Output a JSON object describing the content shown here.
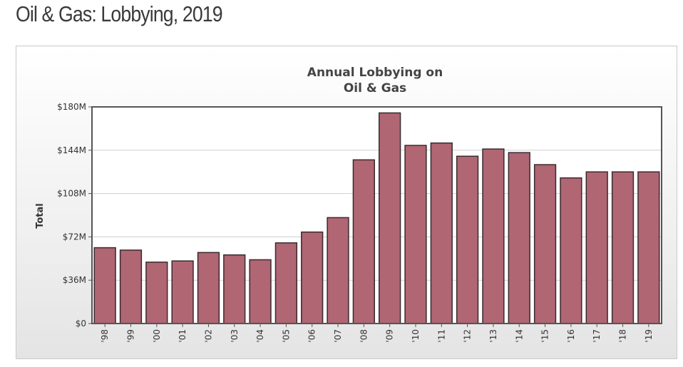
{
  "page": {
    "title": "Oil & Gas: Lobbying, 2019"
  },
  "chart_data": {
    "type": "bar",
    "title_lines": [
      "Annual Lobbying on",
      "Oil & Gas"
    ],
    "xlabel": "",
    "ylabel": "Total",
    "categories": [
      "'98",
      "'99",
      "'00",
      "'01",
      "'02",
      "'03",
      "'04",
      "'05",
      "'06",
      "'07",
      "'08",
      "'09",
      "'10",
      "'11",
      "'12",
      "'13",
      "'14",
      "'15",
      "'16",
      "'17",
      "'18",
      "'19"
    ],
    "values": [
      63,
      61,
      51,
      52,
      59,
      57,
      53,
      67,
      76,
      88,
      136,
      175,
      148,
      150,
      139,
      145,
      142,
      132,
      121,
      126,
      126,
      126
    ],
    "value_unit": "millions USD",
    "ylim": [
      0,
      180
    ],
    "yticks": [
      0,
      36,
      72,
      108,
      144,
      180
    ],
    "ytick_labels": [
      "$0",
      "$36M",
      "$72M",
      "$108M",
      "$144M",
      "$180M"
    ],
    "grid": true,
    "legend": "none",
    "colors": {
      "bar_fill": "#b06673",
      "bar_stroke": "#3a2a2e",
      "plot_border": "#555555",
      "gridline": "#cfcfcf",
      "plot_background": "#ffffff"
    }
  }
}
